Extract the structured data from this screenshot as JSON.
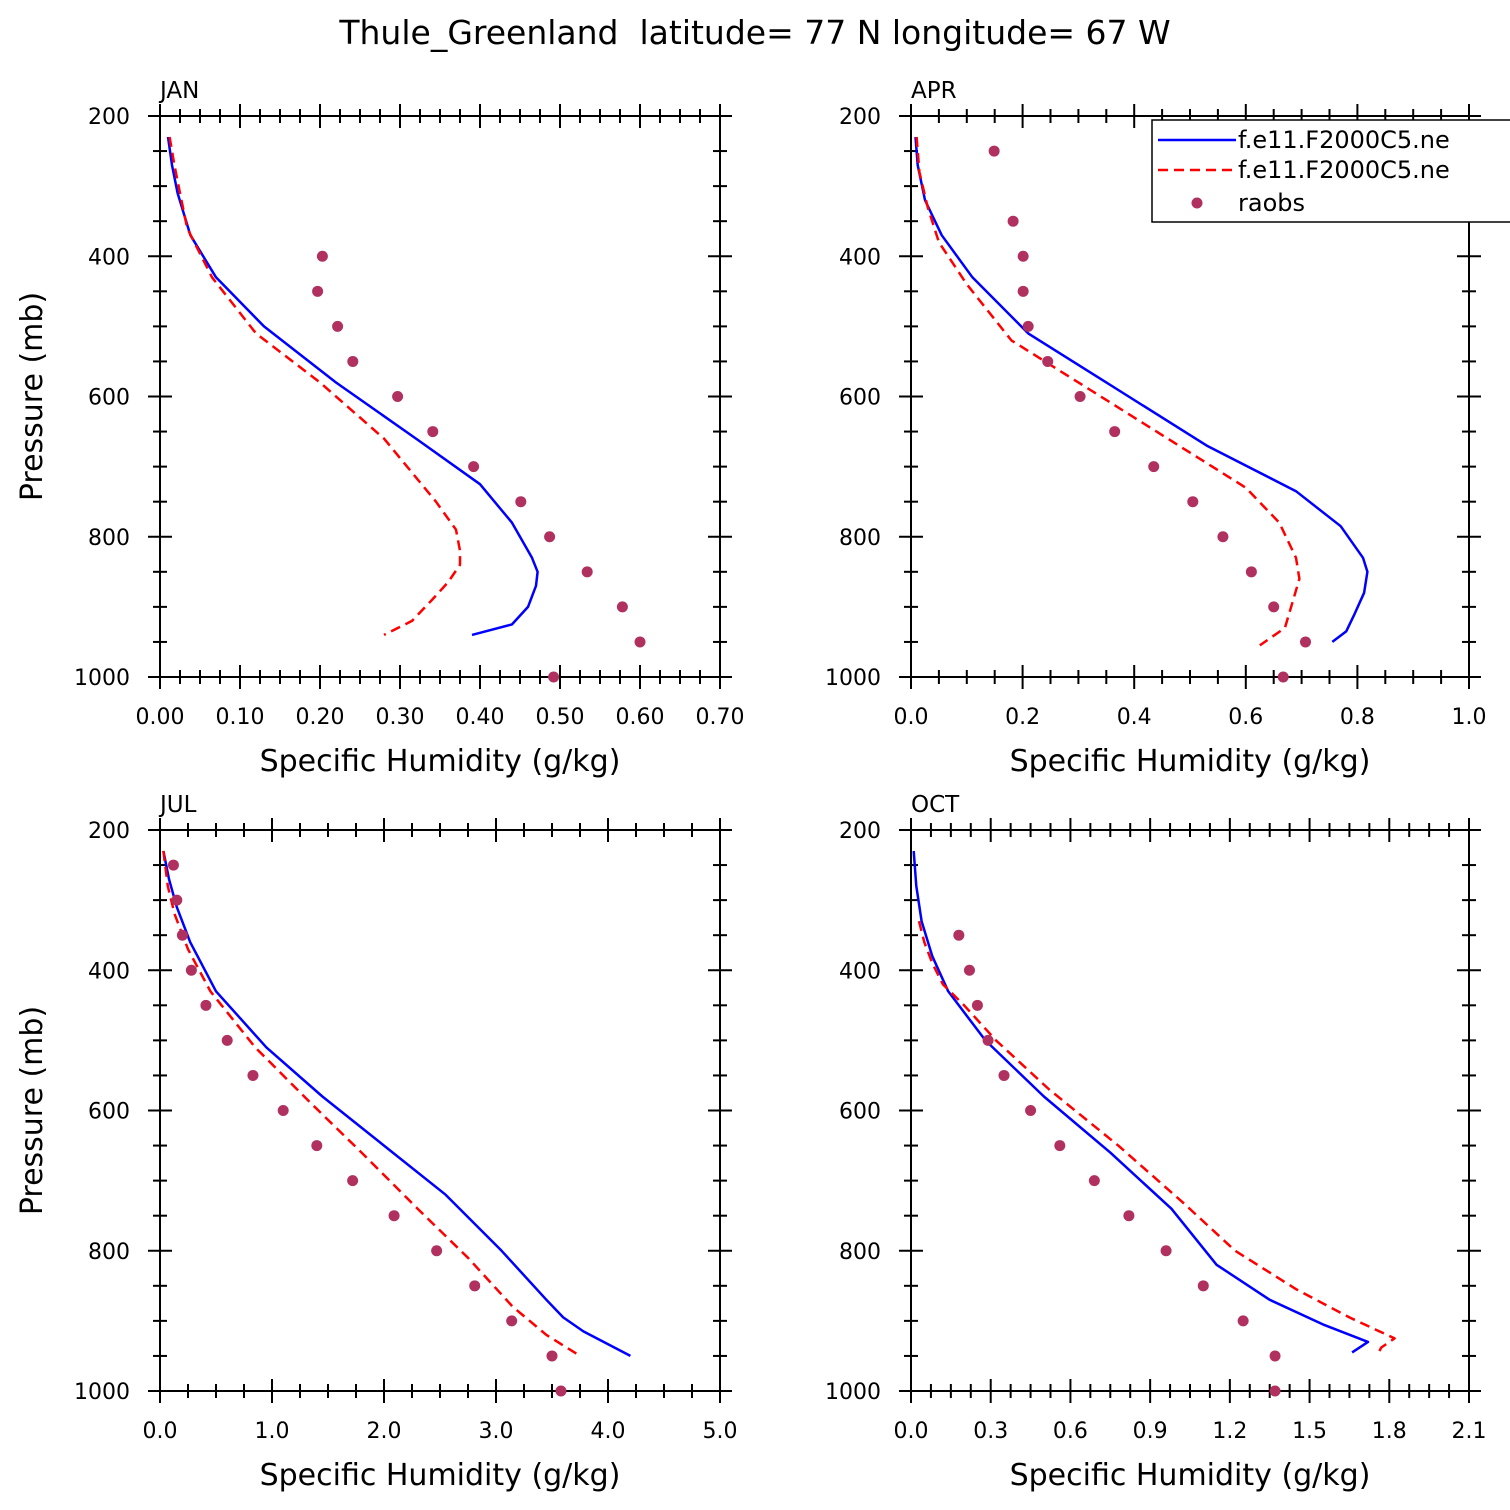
{
  "title": "Thule_Greenland  latitude= 77 N longitude= 67 W",
  "colors": {
    "model1": "#0000ff",
    "model2": "#ff0000",
    "raobs": "#b03060"
  },
  "legend": {
    "placement": "top-right of APR panel",
    "entries": [
      {
        "label": "f.e11.F2000C5.ne",
        "style": "solid",
        "color": "#0000ff"
      },
      {
        "label": "f.e11.F2000C5.ne",
        "style": "dashed",
        "color": "#ff0000"
      },
      {
        "label": "raobs",
        "style": "dot",
        "color": "#b03060"
      }
    ]
  },
  "chart_data": [
    {
      "type": "line",
      "title": "JAN",
      "xlabel": "Specific Humidity (g/kg)",
      "ylabel": "Pressure (mb)",
      "xlim": [
        0,
        0.7
      ],
      "ylim": [
        1000,
        200
      ],
      "xticks": [
        "0.00",
        "0.10",
        "0.20",
        "0.30",
        "0.40",
        "0.50",
        "0.60",
        "0.70"
      ],
      "yticks": [
        "200",
        "400",
        "600",
        "800",
        "1000"
      ],
      "series": [
        {
          "name": "f.e11.F2000C5.ne",
          "style": "solid",
          "x": [
            0.01,
            0.015,
            0.022,
            0.038,
            0.07,
            0.13,
            0.22,
            0.32,
            0.4,
            0.44,
            0.465,
            0.472,
            0.47,
            0.46,
            0.44,
            0.39
          ],
          "y": [
            230,
            270,
            310,
            370,
            430,
            500,
            580,
            660,
            725,
            780,
            830,
            850,
            870,
            900,
            925,
            940
          ]
        },
        {
          "name": "f.e11.F2000C5.ne",
          "style": "dashed",
          "x": [
            0.012,
            0.018,
            0.025,
            0.034,
            0.065,
            0.12,
            0.2,
            0.28,
            0.345,
            0.37,
            0.375,
            0.375,
            0.36,
            0.34,
            0.315,
            0.28
          ],
          "y": [
            230,
            270,
            310,
            360,
            430,
            510,
            580,
            660,
            750,
            790,
            820,
            840,
            865,
            890,
            920,
            940
          ]
        },
        {
          "name": "raobs",
          "style": "dot",
          "x": [
            0.203,
            0.197,
            0.222,
            0.241,
            0.297,
            0.341,
            0.392,
            0.451,
            0.487,
            0.534,
            0.578,
            0.6,
            0.492
          ],
          "y": [
            400,
            450,
            500,
            550,
            600,
            650,
            700,
            750,
            800,
            850,
            900,
            950,
            1000
          ]
        }
      ]
    },
    {
      "type": "line",
      "title": "APR",
      "xlabel": "Specific Humidity (g/kg)",
      "ylabel": "",
      "xlim": [
        0,
        1.0
      ],
      "ylim": [
        1000,
        200
      ],
      "xticks": [
        "0.0",
        "0.2",
        "0.4",
        "0.6",
        "0.8",
        "1.0"
      ],
      "yticks": [
        "200",
        "400",
        "600",
        "800",
        "1000"
      ],
      "series": [
        {
          "name": "f.e11.F2000C5.ne",
          "style": "solid",
          "x": [
            0.008,
            0.012,
            0.025,
            0.055,
            0.11,
            0.21,
            0.37,
            0.53,
            0.69,
            0.77,
            0.81,
            0.818,
            0.812,
            0.795,
            0.78,
            0.755
          ],
          "y": [
            230,
            270,
            320,
            370,
            430,
            510,
            590,
            670,
            735,
            785,
            830,
            850,
            880,
            910,
            935,
            950
          ]
        },
        {
          "name": "f.e11.F2000C5.ne",
          "style": "dashed",
          "x": [
            0.01,
            0.015,
            0.03,
            0.05,
            0.1,
            0.18,
            0.32,
            0.46,
            0.6,
            0.66,
            0.69,
            0.696,
            0.685,
            0.67,
            0.625
          ],
          "y": [
            230,
            280,
            330,
            380,
            440,
            520,
            590,
            660,
            730,
            780,
            830,
            860,
            890,
            930,
            955
          ]
        },
        {
          "name": "raobs",
          "style": "dot",
          "x": [
            0.149,
            0.183,
            0.201,
            0.201,
            0.21,
            0.245,
            0.303,
            0.365,
            0.435,
            0.505,
            0.559,
            0.61,
            0.65,
            0.707,
            0.667
          ],
          "y": [
            250,
            350,
            400,
            450,
            500,
            550,
            600,
            650,
            700,
            750,
            800,
            850,
            900,
            950,
            1000
          ]
        }
      ]
    },
    {
      "type": "line",
      "title": "JUL",
      "xlabel": "Specific Humidity (g/kg)",
      "ylabel": "Pressure (mb)",
      "xlim": [
        0,
        5.0
      ],
      "ylim": [
        1000,
        200
      ],
      "xticks": [
        "0.0",
        "1.0",
        "2.0",
        "3.0",
        "4.0",
        "5.0"
      ],
      "yticks": [
        "200",
        "400",
        "600",
        "800",
        "1000"
      ],
      "series": [
        {
          "name": "f.e11.F2000C5.ne",
          "style": "solid",
          "x": [
            0.03,
            0.08,
            0.15,
            0.27,
            0.5,
            0.95,
            1.45,
            2.0,
            2.55,
            3.05,
            3.45,
            3.6,
            3.78,
            4.2
          ],
          "y": [
            230,
            270,
            310,
            360,
            430,
            510,
            580,
            650,
            720,
            800,
            870,
            895,
            915,
            950
          ]
        },
        {
          "name": "f.e11.F2000C5.ne",
          "style": "dashed",
          "x": [
            0.03,
            0.07,
            0.13,
            0.25,
            0.45,
            0.85,
            1.35,
            1.8,
            2.3,
            2.75,
            3.15,
            3.45,
            3.75
          ],
          "y": [
            230,
            280,
            320,
            370,
            430,
            510,
            590,
            660,
            740,
            810,
            880,
            920,
            950
          ]
        },
        {
          "name": "raobs",
          "style": "dot",
          "x": [
            0.12,
            0.15,
            0.2,
            0.28,
            0.41,
            0.6,
            0.83,
            1.1,
            1.4,
            1.72,
            2.09,
            2.47,
            2.81,
            3.14,
            3.5,
            3.58
          ],
          "y": [
            250,
            300,
            350,
            400,
            450,
            500,
            550,
            600,
            650,
            700,
            750,
            800,
            850,
            900,
            950,
            1000
          ]
        }
      ]
    },
    {
      "type": "line",
      "title": "OCT",
      "xlabel": "Specific Humidity (g/kg)",
      "ylabel": "",
      "xlim": [
        0,
        2.1
      ],
      "ylim": [
        1000,
        200
      ],
      "xticks": [
        "0.0",
        "0.3",
        "0.6",
        "0.9",
        "1.2",
        "1.5",
        "1.8",
        "2.1"
      ],
      "yticks": [
        "200",
        "400",
        "600",
        "800",
        "1000"
      ],
      "series": [
        {
          "name": "f.e11.F2000C5.ne",
          "style": "solid",
          "x": [
            0.01,
            0.02,
            0.04,
            0.08,
            0.14,
            0.28,
            0.5,
            0.75,
            0.98,
            1.15,
            1.35,
            1.55,
            1.72,
            1.66
          ],
          "y": [
            230,
            280,
            330,
            380,
            430,
            500,
            580,
            660,
            740,
            820,
            870,
            905,
            930,
            945
          ]
        },
        {
          "name": "f.e11.F2000C5.ne",
          "style": "dashed",
          "x": [
            0.03,
            0.05,
            0.08,
            0.12,
            0.2,
            0.32,
            0.52,
            0.78,
            1.02,
            1.22,
            1.45,
            1.65,
            1.82,
            1.77,
            1.76
          ],
          "y": [
            330,
            360,
            390,
            420,
            450,
            500,
            570,
            650,
            730,
            800,
            855,
            895,
            925,
            938,
            945
          ]
        },
        {
          "name": "raobs",
          "style": "dot",
          "x": [
            0.18,
            0.22,
            0.25,
            0.29,
            0.35,
            0.45,
            0.56,
            0.69,
            0.82,
            0.96,
            1.1,
            1.25,
            1.37,
            1.37
          ],
          "y": [
            350,
            400,
            450,
            500,
            550,
            600,
            650,
            700,
            750,
            800,
            850,
            900,
            950,
            1000
          ]
        }
      ]
    }
  ]
}
